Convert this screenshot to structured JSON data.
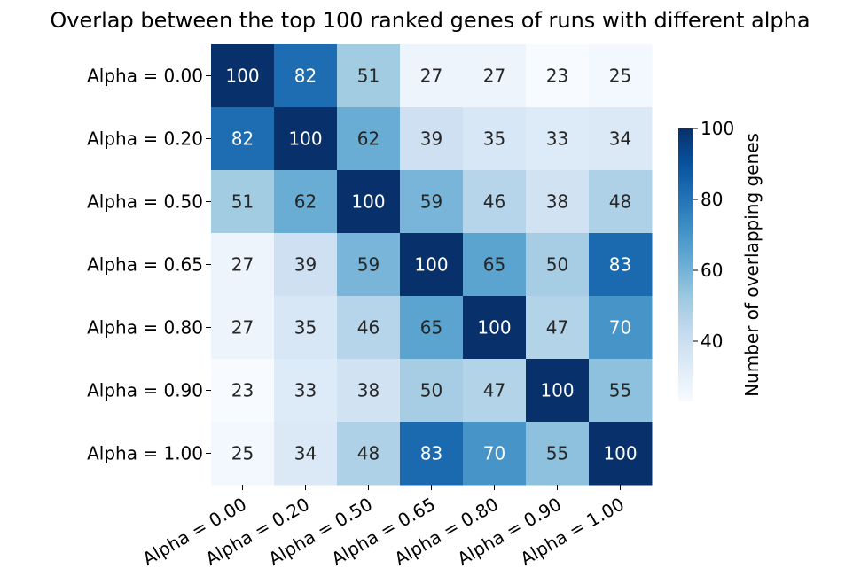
{
  "chart_data": {
    "type": "heatmap",
    "title": "Overlap between the top 100 ranked genes of runs with different alpha",
    "x_categories": [
      "Alpha = 0.00",
      "Alpha = 0.20",
      "Alpha = 0.50",
      "Alpha = 0.65",
      "Alpha = 0.80",
      "Alpha = 0.90",
      "Alpha = 1.00"
    ],
    "y_categories": [
      "Alpha = 0.00",
      "Alpha = 0.20",
      "Alpha = 0.50",
      "Alpha = 0.65",
      "Alpha = 0.80",
      "Alpha = 0.90",
      "Alpha = 1.00"
    ],
    "values": [
      [
        100,
        82,
        51,
        27,
        27,
        23,
        25
      ],
      [
        82,
        100,
        62,
        39,
        35,
        33,
        34
      ],
      [
        51,
        62,
        100,
        59,
        46,
        38,
        48
      ],
      [
        27,
        39,
        59,
        100,
        65,
        50,
        83
      ],
      [
        27,
        35,
        46,
        65,
        100,
        47,
        70
      ],
      [
        23,
        33,
        38,
        50,
        47,
        100,
        55
      ],
      [
        25,
        34,
        48,
        83,
        70,
        55,
        100
      ]
    ],
    "colorbar": {
      "label": "Number of overlapping genes",
      "ticks": [
        40,
        60,
        80,
        100
      ],
      "vmin": 23,
      "vmax": 100
    },
    "colormap": "Blues",
    "annotated": true,
    "x_tick_rotation": "30 degrees"
  }
}
